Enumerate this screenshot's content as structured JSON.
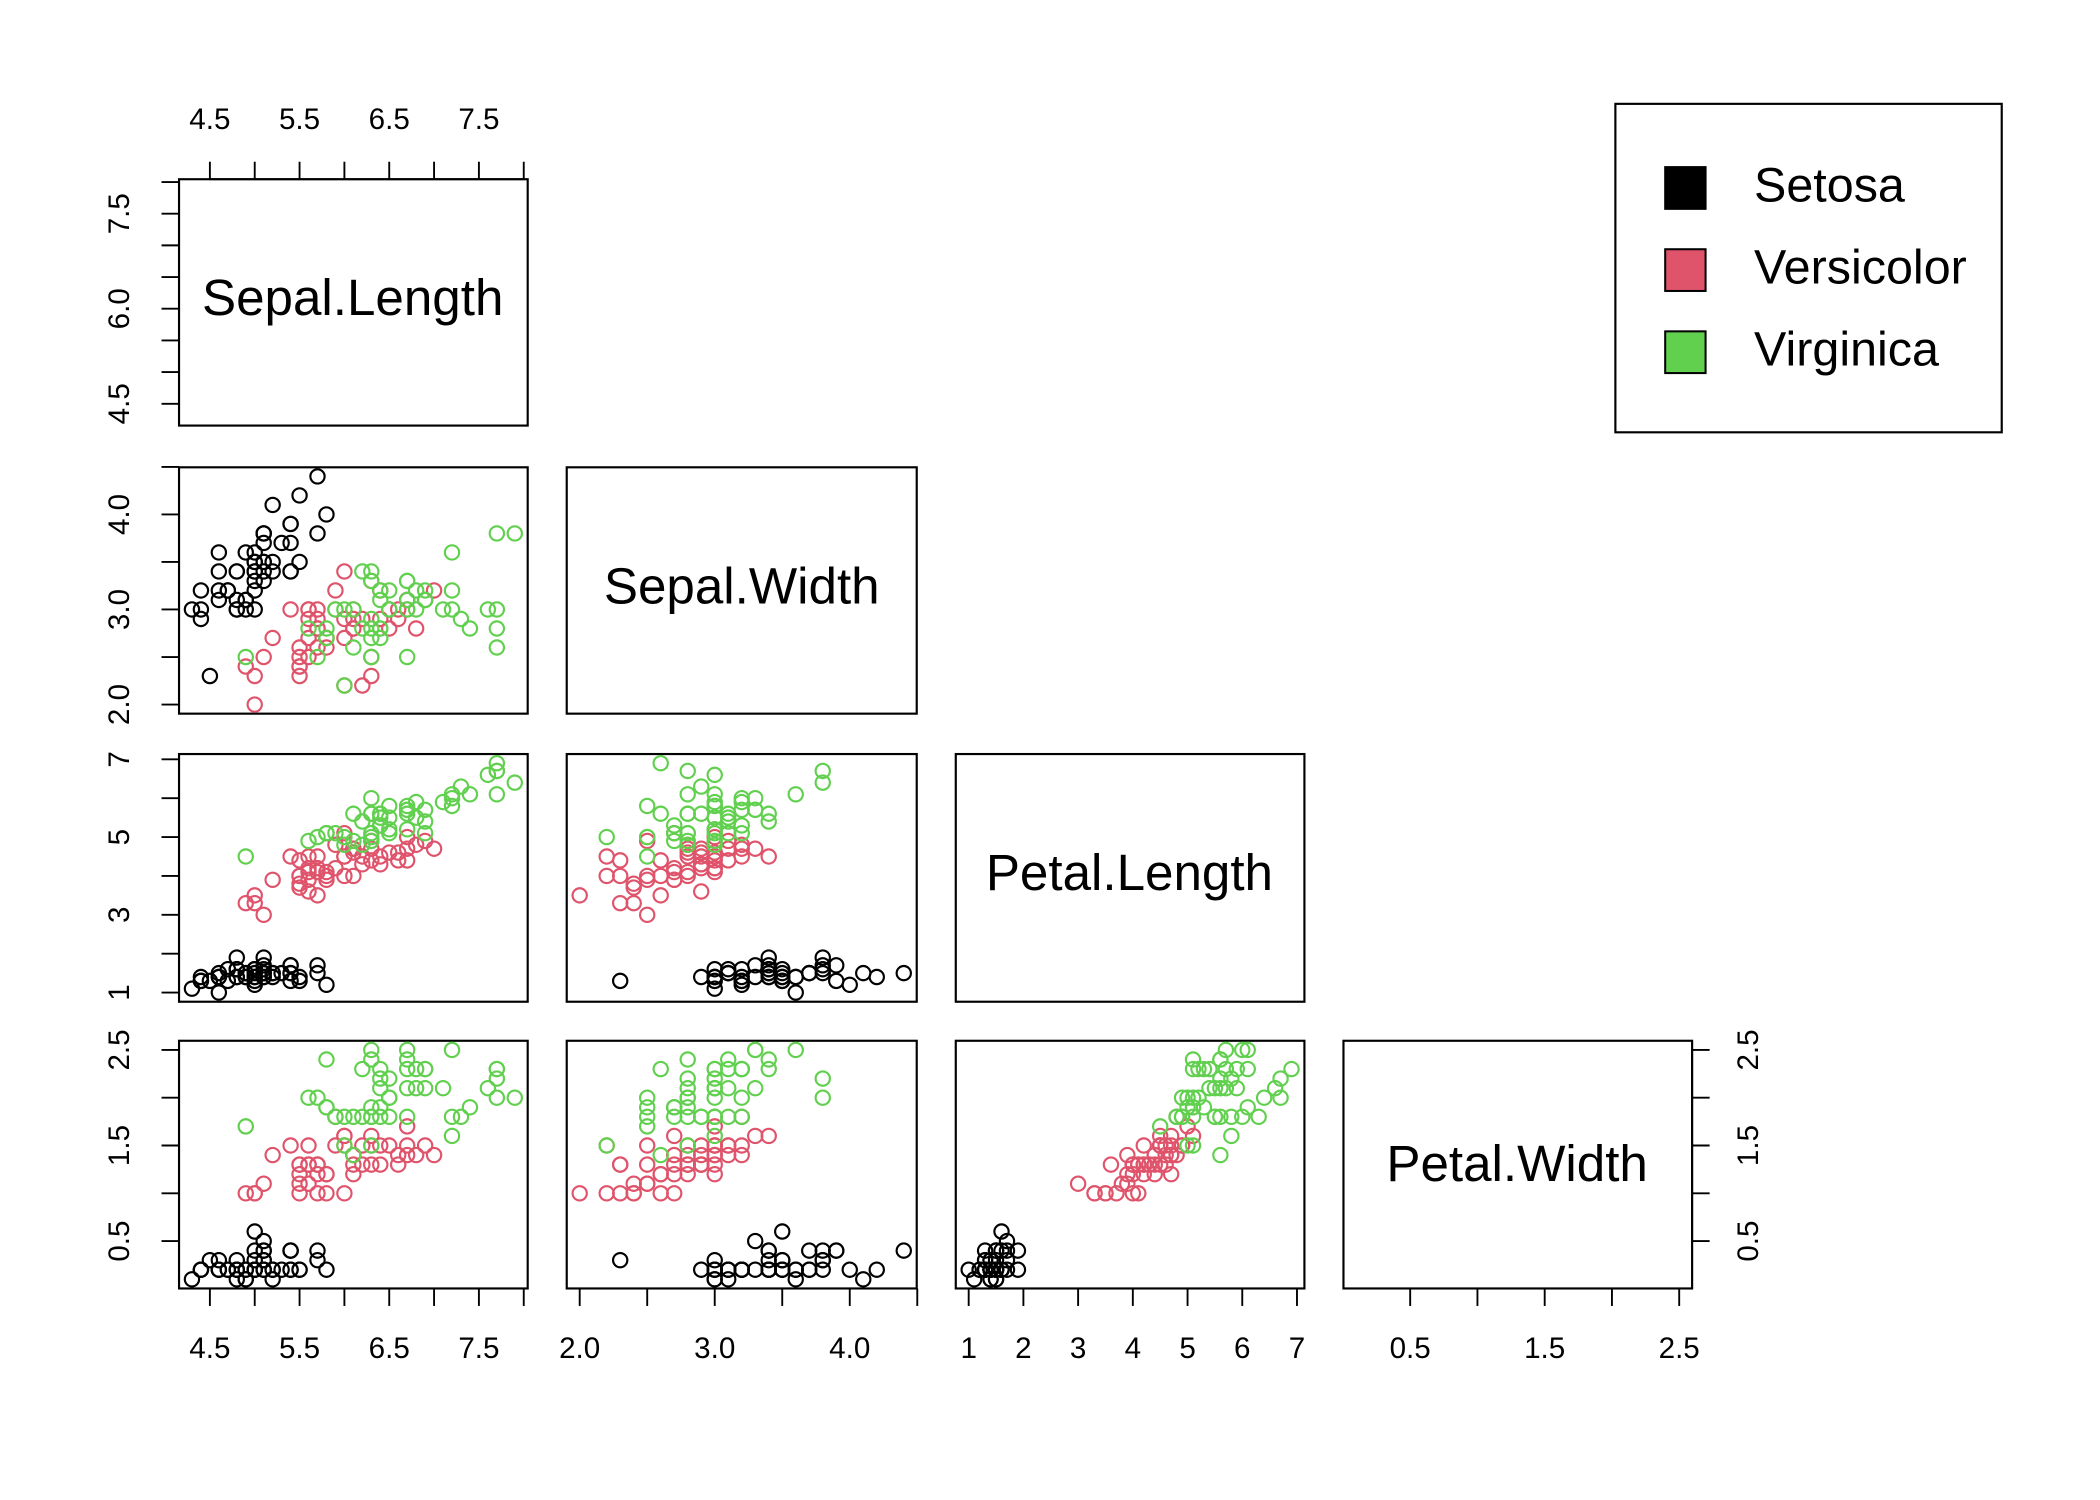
{
  "chart_data": {
    "type": "scatter",
    "title": "",
    "variables": [
      "Sepal.Length",
      "Sepal.Width",
      "Petal.Length",
      "Petal.Width"
    ],
    "ranges": {
      "Sepal.Length": [
        4.3,
        7.9
      ],
      "Sepal.Width": [
        2.0,
        4.4
      ],
      "Petal.Length": [
        1.0,
        6.9
      ],
      "Petal.Width": [
        0.1,
        2.5
      ]
    },
    "axes": {
      "Sepal.Length": {
        "ticks": [
          4.5,
          5.0,
          5.5,
          6.0,
          6.5,
          7.0,
          7.5,
          8.0
        ],
        "labels_bottom": [
          "4.5",
          "",
          "5.5",
          "",
          "6.5",
          "",
          "7.5",
          ""
        ],
        "labels_left": [
          "4.5",
          "",
          "",
          "6.0",
          "",
          "",
          "7.5",
          ""
        ]
      },
      "Sepal.Width": {
        "ticks": [
          2.0,
          2.5,
          3.0,
          3.5,
          4.0,
          4.5
        ],
        "labels_bottom": [
          "2.0",
          "",
          "3.0",
          "",
          "4.0",
          ""
        ],
        "labels_left": [
          "2.0",
          "",
          "3.0",
          "",
          "4.0"
        ]
      },
      "Petal.Length": {
        "ticks": [
          1,
          2,
          3,
          4,
          5,
          6,
          7
        ],
        "labels_bottom": [
          "1",
          "2",
          "3",
          "4",
          "5",
          "6",
          "7"
        ],
        "labels_left": [
          "1",
          "",
          "3",
          "",
          "5",
          "",
          "7"
        ]
      },
      "Petal.Width": {
        "ticks": [
          0.5,
          1.0,
          1.5,
          2.0,
          2.5
        ],
        "labels_bottom": [
          "0.5",
          "",
          "1.5",
          "",
          "2.5"
        ],
        "labels_left": [
          "0.5",
          "",
          "1.5",
          "",
          "2.5"
        ]
      }
    },
    "legend": {
      "position": "top-right",
      "entries": [
        {
          "label": "Setosa",
          "color": "#000000"
        },
        {
          "label": "Versicolor",
          "color": "#DF536B"
        },
        {
          "label": "Virginica",
          "color": "#61D04F"
        }
      ]
    },
    "series": [
      {
        "name": "Setosa",
        "color": "#000000",
        "Sepal.Length": [
          5.1,
          4.9,
          4.7,
          4.6,
          5.0,
          5.4,
          4.6,
          5.0,
          4.4,
          4.9,
          5.4,
          4.8,
          4.8,
          4.3,
          5.8,
          5.7,
          5.4,
          5.1,
          5.7,
          5.1,
          5.4,
          5.1,
          4.6,
          5.1,
          4.8,
          5.0,
          5.0,
          5.2,
          5.2,
          4.7,
          4.8,
          5.4,
          5.2,
          5.5,
          4.9,
          5.0,
          5.5,
          4.9,
          4.4,
          5.1,
          5.0,
          4.5,
          4.4,
          5.0,
          5.1,
          4.8,
          5.1,
          4.6,
          5.3,
          5.0
        ],
        "Sepal.Width": [
          3.5,
          3.0,
          3.2,
          3.1,
          3.6,
          3.9,
          3.4,
          3.4,
          2.9,
          3.1,
          3.7,
          3.4,
          3.0,
          3.0,
          4.0,
          4.4,
          3.9,
          3.5,
          3.8,
          3.8,
          3.4,
          3.7,
          3.6,
          3.3,
          3.4,
          3.0,
          3.4,
          3.5,
          3.4,
          3.2,
          3.1,
          3.4,
          4.1,
          4.2,
          3.1,
          3.2,
          3.5,
          3.6,
          3.0,
          3.4,
          3.5,
          2.3,
          3.2,
          3.5,
          3.8,
          3.0,
          3.8,
          3.2,
          3.7,
          3.3
        ],
        "Petal.Length": [
          1.4,
          1.4,
          1.3,
          1.5,
          1.4,
          1.7,
          1.4,
          1.5,
          1.4,
          1.5,
          1.5,
          1.6,
          1.4,
          1.1,
          1.2,
          1.5,
          1.3,
          1.4,
          1.7,
          1.5,
          1.7,
          1.5,
          1.0,
          1.7,
          1.9,
          1.6,
          1.6,
          1.5,
          1.4,
          1.6,
          1.6,
          1.5,
          1.5,
          1.4,
          1.5,
          1.2,
          1.3,
          1.4,
          1.3,
          1.5,
          1.3,
          1.3,
          1.3,
          1.6,
          1.9,
          1.4,
          1.6,
          1.4,
          1.5,
          1.4
        ],
        "Petal.Width": [
          0.2,
          0.2,
          0.2,
          0.2,
          0.2,
          0.4,
          0.3,
          0.2,
          0.2,
          0.1,
          0.2,
          0.2,
          0.1,
          0.1,
          0.2,
          0.4,
          0.4,
          0.3,
          0.3,
          0.3,
          0.2,
          0.4,
          0.2,
          0.5,
          0.2,
          0.2,
          0.4,
          0.2,
          0.2,
          0.2,
          0.2,
          0.4,
          0.1,
          0.2,
          0.2,
          0.2,
          0.2,
          0.1,
          0.2,
          0.2,
          0.3,
          0.3,
          0.2,
          0.6,
          0.4,
          0.3,
          0.2,
          0.2,
          0.2,
          0.2
        ]
      },
      {
        "name": "Versicolor",
        "color": "#DF536B",
        "Sepal.Length": [
          7.0,
          6.4,
          6.9,
          5.5,
          6.5,
          5.7,
          6.3,
          4.9,
          6.6,
          5.2,
          5.0,
          5.9,
          6.0,
          6.1,
          5.6,
          6.7,
          5.6,
          5.8,
          6.2,
          5.6,
          5.9,
          6.1,
          6.3,
          6.1,
          6.4,
          6.6,
          6.8,
          6.7,
          6.0,
          5.7,
          5.5,
          5.5,
          5.8,
          6.0,
          5.4,
          6.0,
          6.7,
          6.3,
          5.6,
          5.5,
          5.5,
          6.1,
          5.8,
          5.0,
          5.6,
          5.7,
          5.7,
          6.2,
          5.1,
          5.7
        ],
        "Sepal.Width": [
          3.2,
          3.2,
          3.1,
          2.3,
          2.8,
          2.8,
          3.3,
          2.4,
          2.9,
          2.7,
          2.0,
          3.0,
          2.2,
          2.9,
          2.9,
          3.1,
          3.0,
          2.7,
          2.2,
          2.5,
          3.2,
          2.8,
          2.5,
          2.8,
          2.9,
          3.0,
          2.8,
          3.0,
          2.9,
          2.6,
          2.4,
          2.4,
          2.7,
          2.7,
          3.0,
          3.4,
          3.1,
          2.3,
          3.0,
          2.5,
          2.6,
          3.0,
          2.6,
          2.3,
          2.7,
          3.0,
          2.9,
          2.9,
          2.5,
          2.8
        ],
        "Petal.Length": [
          4.7,
          4.5,
          4.9,
          4.0,
          4.6,
          4.5,
          4.7,
          3.3,
          4.6,
          3.9,
          3.5,
          4.2,
          4.0,
          4.7,
          3.6,
          4.4,
          4.5,
          4.1,
          4.5,
          3.9,
          4.8,
          4.0,
          4.9,
          4.7,
          4.3,
          4.4,
          4.8,
          5.0,
          4.5,
          3.5,
          3.8,
          3.7,
          3.9,
          5.1,
          4.5,
          4.5,
          4.7,
          4.4,
          4.1,
          4.0,
          4.4,
          4.6,
          4.0,
          3.3,
          4.2,
          4.2,
          4.2,
          4.3,
          3.0,
          4.1
        ],
        "Petal.Width": [
          1.4,
          1.5,
          1.5,
          1.3,
          1.5,
          1.3,
          1.6,
          1.0,
          1.3,
          1.4,
          1.0,
          1.5,
          1.0,
          1.4,
          1.3,
          1.4,
          1.5,
          1.0,
          1.5,
          1.1,
          1.8,
          1.3,
          1.5,
          1.2,
          1.3,
          1.4,
          1.4,
          1.7,
          1.5,
          1.0,
          1.1,
          1.0,
          1.2,
          1.6,
          1.5,
          1.6,
          1.5,
          1.3,
          1.3,
          1.3,
          1.2,
          1.4,
          1.2,
          1.0,
          1.3,
          1.2,
          1.3,
          1.3,
          1.1,
          1.3
        ]
      },
      {
        "name": "Virginica",
        "color": "#61D04F",
        "Sepal.Length": [
          6.3,
          5.8,
          7.1,
          6.3,
          6.5,
          7.6,
          4.9,
          7.3,
          6.7,
          7.2,
          6.5,
          6.4,
          6.8,
          5.7,
          5.8,
          6.4,
          6.5,
          7.7,
          7.7,
          6.0,
          6.9,
          5.6,
          7.7,
          6.3,
          6.7,
          7.2,
          6.2,
          6.1,
          6.4,
          7.2,
          7.4,
          7.9,
          6.4,
          6.3,
          6.1,
          7.7,
          6.3,
          6.4,
          6.0,
          6.9,
          6.7,
          6.9,
          5.8,
          6.8,
          6.7,
          6.7,
          6.3,
          6.5,
          6.2,
          5.9
        ],
        "Sepal.Width": [
          3.3,
          2.7,
          3.0,
          2.9,
          3.0,
          3.0,
          2.5,
          2.9,
          2.5,
          3.6,
          3.2,
          2.7,
          3.0,
          2.5,
          2.8,
          3.2,
          3.0,
          3.8,
          2.6,
          2.2,
          3.2,
          2.8,
          2.8,
          2.7,
          3.3,
          3.2,
          2.8,
          3.0,
          2.8,
          3.0,
          2.8,
          3.8,
          2.8,
          2.8,
          2.6,
          3.0,
          3.4,
          3.1,
          3.0,
          3.1,
          3.1,
          3.1,
          2.7,
          3.2,
          3.3,
          3.0,
          2.5,
          3.0,
          3.4,
          3.0
        ],
        "Petal.Length": [
          6.0,
          5.1,
          5.9,
          5.6,
          5.8,
          6.6,
          4.5,
          6.3,
          5.8,
          6.1,
          5.1,
          5.3,
          5.5,
          5.0,
          5.1,
          5.3,
          5.5,
          6.7,
          6.9,
          5.0,
          5.7,
          4.9,
          6.7,
          4.9,
          5.7,
          6.0,
          4.8,
          4.9,
          5.6,
          5.8,
          6.1,
          6.4,
          5.6,
          5.1,
          5.6,
          6.1,
          5.6,
          5.5,
          4.8,
          5.4,
          5.6,
          5.1,
          5.1,
          5.9,
          5.7,
          5.2,
          5.0,
          5.2,
          5.4,
          5.1
        ],
        "Petal.Width": [
          2.5,
          1.9,
          2.1,
          1.8,
          2.2,
          2.1,
          1.7,
          1.8,
          1.8,
          2.5,
          2.0,
          1.9,
          2.1,
          2.0,
          2.4,
          2.3,
          1.8,
          2.2,
          2.3,
          1.5,
          2.3,
          2.0,
          2.0,
          1.8,
          2.1,
          1.8,
          1.8,
          1.8,
          2.1,
          1.6,
          1.9,
          2.0,
          2.2,
          1.5,
          1.4,
          2.3,
          2.4,
          1.8,
          1.8,
          2.1,
          2.4,
          2.3,
          1.9,
          2.3,
          2.5,
          2.3,
          1.9,
          2.0,
          2.3,
          1.8
        ]
      }
    ]
  }
}
